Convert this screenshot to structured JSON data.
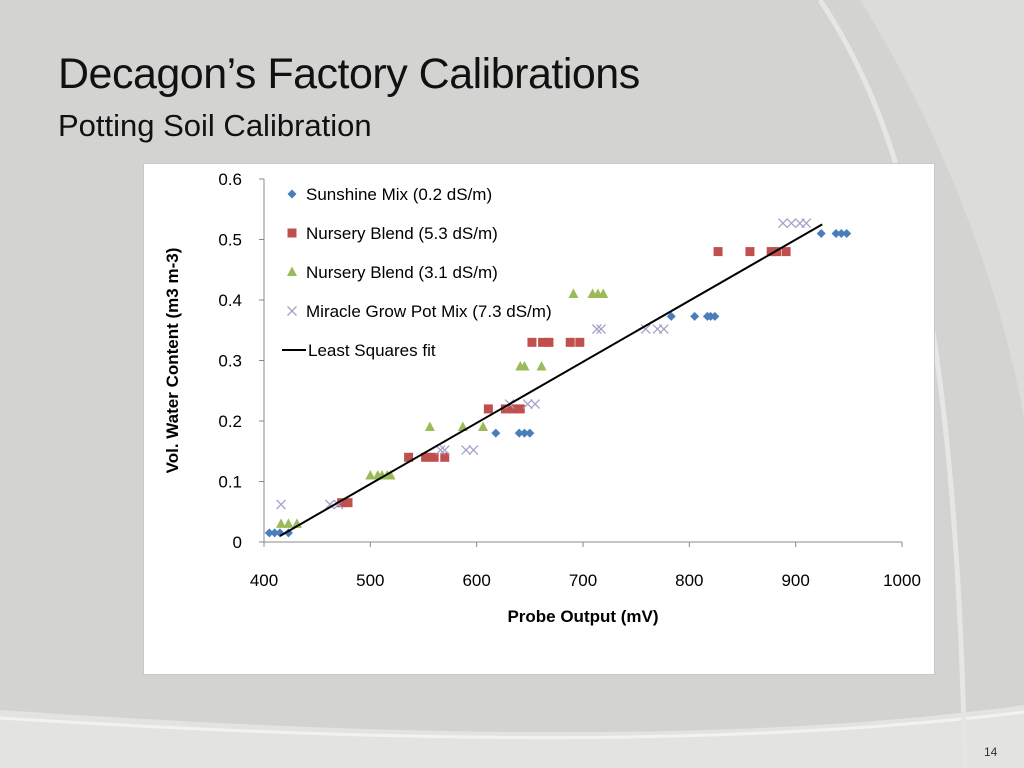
{
  "slide": {
    "title": "Decagon’s Factory Calibrations",
    "subtitle": "Potting  Soil Calibration",
    "page_number": "14"
  },
  "colors": {
    "background": "#d3d3d1",
    "sunshine": "#4a7ebb",
    "nursery53": "#c0504d",
    "nursery31": "#9bbb59",
    "miracle": "#a8a0c8",
    "fit": "#000000"
  },
  "chart_data": {
    "type": "scatter",
    "xlabel": "Probe Output (mV)",
    "ylabel": "Vol. Water Content (m3 m-3)",
    "xlim": [
      400,
      1000
    ],
    "ylim": [
      0,
      0.6
    ],
    "xticks": [
      400,
      500,
      600,
      700,
      800,
      900,
      1000
    ],
    "yticks": [
      0,
      0.1,
      0.2,
      0.3,
      0.4,
      0.5,
      0.6
    ],
    "legend_position": "top-left",
    "grid": false,
    "series": [
      {
        "name": "Sunshine Mix (0.2 dS/m)",
        "marker": "diamond",
        "color": "#4a7ebb",
        "points": [
          [
            405,
            0.015
          ],
          [
            410,
            0.015
          ],
          [
            415,
            0.015
          ],
          [
            423,
            0.015
          ],
          [
            618,
            0.18
          ],
          [
            640,
            0.18
          ],
          [
            645,
            0.18
          ],
          [
            650,
            0.18
          ],
          [
            783,
            0.373
          ],
          [
            805,
            0.373
          ],
          [
            817,
            0.373
          ],
          [
            820,
            0.373
          ],
          [
            824,
            0.373
          ],
          [
            924,
            0.51
          ],
          [
            938,
            0.51
          ],
          [
            943,
            0.51
          ],
          [
            948,
            0.51
          ]
        ]
      },
      {
        "name": "Nursery Blend (5.3 dS/m)",
        "marker": "square",
        "color": "#c0504d",
        "points": [
          [
            473,
            0.065
          ],
          [
            479,
            0.065
          ],
          [
            536,
            0.14
          ],
          [
            552,
            0.14
          ],
          [
            560,
            0.14
          ],
          [
            570,
            0.14
          ],
          [
            611,
            0.22
          ],
          [
            627,
            0.22
          ],
          [
            634,
            0.22
          ],
          [
            641,
            0.22
          ],
          [
            652,
            0.33
          ],
          [
            662,
            0.33
          ],
          [
            668,
            0.33
          ],
          [
            688,
            0.33
          ],
          [
            697,
            0.33
          ],
          [
            827,
            0.48
          ],
          [
            857,
            0.48
          ],
          [
            877,
            0.48
          ],
          [
            882,
            0.48
          ],
          [
            891,
            0.48
          ]
        ]
      },
      {
        "name": "Nursery Blend (3.1 dS/m)",
        "marker": "triangle",
        "color": "#9bbb59",
        "points": [
          [
            416,
            0.03
          ],
          [
            423,
            0.03
          ],
          [
            431,
            0.03
          ],
          [
            500,
            0.11
          ],
          [
            507,
            0.11
          ],
          [
            511,
            0.11
          ],
          [
            516,
            0.11
          ],
          [
            519,
            0.11
          ],
          [
            556,
            0.19
          ],
          [
            587,
            0.19
          ],
          [
            606,
            0.19
          ],
          [
            641,
            0.29
          ],
          [
            645,
            0.29
          ],
          [
            661,
            0.29
          ],
          [
            691,
            0.41
          ],
          [
            709,
            0.41
          ],
          [
            714,
            0.41
          ],
          [
            719,
            0.41
          ]
        ]
      },
      {
        "name": "Miracle Grow Pot Mix (7.3 dS/m)",
        "marker": "x",
        "color": "#a8a0c8",
        "points": [
          [
            416,
            0.062
          ],
          [
            462,
            0.062
          ],
          [
            470,
            0.062
          ],
          [
            566,
            0.152
          ],
          [
            570,
            0.152
          ],
          [
            590,
            0.152
          ],
          [
            597,
            0.152
          ],
          [
            631,
            0.228
          ],
          [
            648,
            0.228
          ],
          [
            655,
            0.228
          ],
          [
            713,
            0.352
          ],
          [
            717,
            0.352
          ],
          [
            759,
            0.352
          ],
          [
            770,
            0.352
          ],
          [
            776,
            0.352
          ],
          [
            888,
            0.527
          ],
          [
            896,
            0.527
          ],
          [
            904,
            0.527
          ],
          [
            910,
            0.527
          ]
        ]
      },
      {
        "name": "Least Squares fit",
        "marker": "line",
        "color": "#000000",
        "points": [
          [
            415,
            0.01
          ],
          [
            925,
            0.525
          ]
        ]
      }
    ]
  }
}
